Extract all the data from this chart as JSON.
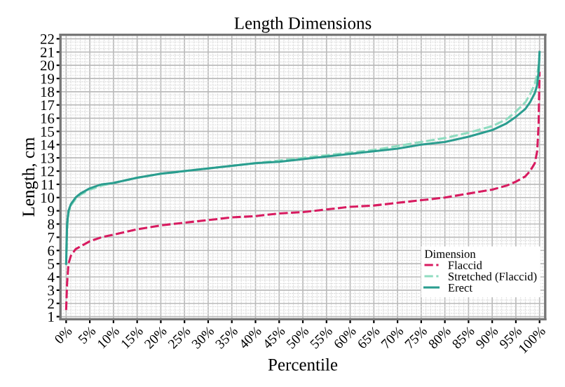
{
  "chart_data": {
    "type": "line",
    "title": "Length Dimensions",
    "xlabel": "Percentile",
    "ylabel": "Length, cm",
    "legend_title": "Dimension",
    "legend": "bottom right",
    "grid": true,
    "marker": "none",
    "xlim": [
      -1.2,
      101.2
    ],
    "ylim": [
      0.8,
      22.3
    ],
    "xticks": [
      {
        "value": 0,
        "label": "0%"
      },
      {
        "value": 5,
        "label": "5%"
      },
      {
        "value": 10,
        "label": "10%"
      },
      {
        "value": 15,
        "label": "15%"
      },
      {
        "value": 20,
        "label": "20%"
      },
      {
        "value": 25,
        "label": "25%"
      },
      {
        "value": 30,
        "label": "30%"
      },
      {
        "value": 35,
        "label": "35%"
      },
      {
        "value": 40,
        "label": "40%"
      },
      {
        "value": 45,
        "label": "45%"
      },
      {
        "value": 50,
        "label": "50%"
      },
      {
        "value": 55,
        "label": "55%"
      },
      {
        "value": 60,
        "label": "60%"
      },
      {
        "value": 65,
        "label": "65%"
      },
      {
        "value": 70,
        "label": "70%"
      },
      {
        "value": 75,
        "label": "75%"
      },
      {
        "value": 80,
        "label": "80%"
      },
      {
        "value": 85,
        "label": "85%"
      },
      {
        "value": 90,
        "label": "90%"
      },
      {
        "value": 95,
        "label": "95%"
      },
      {
        "value": 100,
        "label": "100%"
      }
    ],
    "yticks": [
      1,
      2,
      3,
      4,
      5,
      6,
      7,
      8,
      9,
      10,
      11,
      12,
      13,
      14,
      15,
      16,
      17,
      18,
      19,
      20,
      21,
      22
    ],
    "x": [
      0,
      0.2,
      0.5,
      1,
      2,
      3,
      5,
      7.5,
      10,
      15,
      20,
      25,
      30,
      35,
      40,
      45,
      50,
      55,
      60,
      65,
      70,
      75,
      80,
      85,
      90,
      93,
      95,
      97,
      98,
      99,
      99.5,
      99.8,
      100
    ],
    "series": [
      {
        "name": "Flaccid",
        "color": "#d81b60",
        "line_style": "dashed",
        "values": [
          1.5,
          3.5,
          5,
          5.6,
          6.1,
          6.3,
          6.7,
          7.0,
          7.2,
          7.6,
          7.9,
          8.1,
          8.3,
          8.5,
          8.6,
          8.8,
          8.9,
          9.1,
          9.3,
          9.4,
          9.6,
          9.8,
          10.0,
          10.3,
          10.6,
          10.9,
          11.2,
          11.6,
          12,
          12.6,
          13.5,
          15.5,
          19.5
        ]
      },
      {
        "name": "Stretched (Flaccid)",
        "color": "#8fdcc0",
        "line_style": "dashed",
        "values": [
          5,
          7.5,
          8.8,
          9.4,
          9.9,
          10.2,
          10.6,
          10.9,
          11.1,
          11.5,
          11.8,
          12.0,
          12.2,
          12.4,
          12.6,
          12.8,
          13.0,
          13.2,
          13.4,
          13.6,
          13.9,
          14.2,
          14.5,
          14.9,
          15.4,
          15.9,
          16.5,
          17.2,
          17.8,
          18.6,
          19.3,
          20,
          20.5
        ]
      },
      {
        "name": "Erect",
        "color": "#2a9d8f",
        "line_style": "solid",
        "values": [
          5,
          8,
          9,
          9.5,
          10,
          10.3,
          10.7,
          11.0,
          11.1,
          11.5,
          11.8,
          12.0,
          12.2,
          12.4,
          12.6,
          12.7,
          12.9,
          13.1,
          13.3,
          13.5,
          13.7,
          14.0,
          14.2,
          14.6,
          15.1,
          15.6,
          16.1,
          16.7,
          17.2,
          17.9,
          18.5,
          19.5,
          21
        ]
      }
    ]
  }
}
